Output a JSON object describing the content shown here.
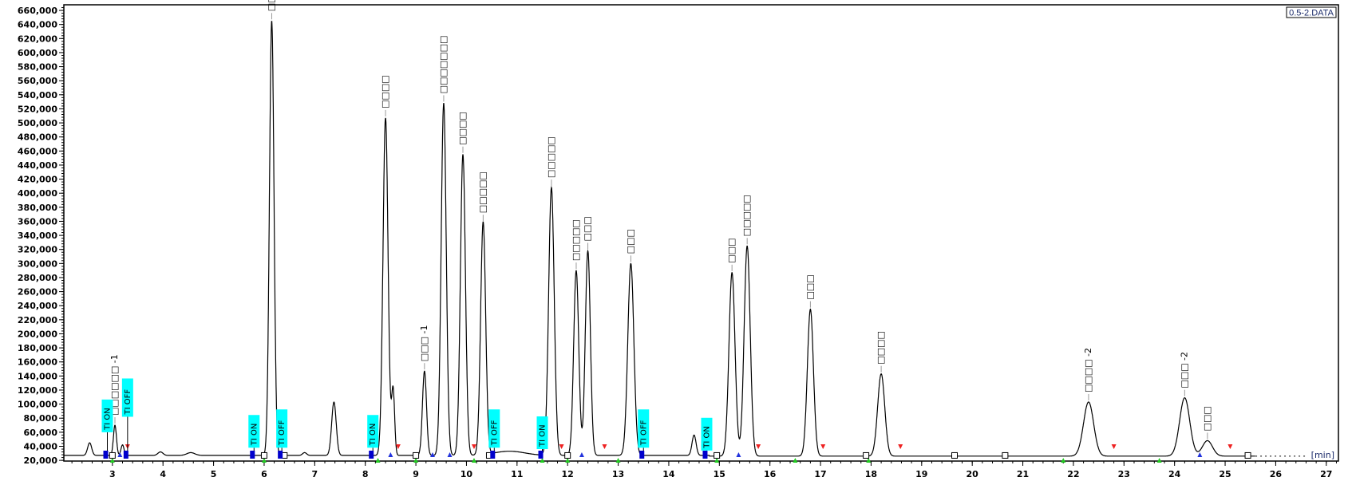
{
  "chart_data": {
    "type": "line",
    "title": "",
    "file_label": "0.5-2.DATA",
    "xlabel": "[min]",
    "ylabel": "",
    "xlim": [
      2.04,
      27.24
    ],
    "ylim": [
      19000,
      668000
    ],
    "x_ticks": [
      3,
      4,
      5,
      6,
      7,
      8,
      9,
      10,
      11,
      12,
      13,
      14,
      15,
      16,
      17,
      18,
      19,
      20,
      21,
      22,
      23,
      24,
      25,
      26,
      27
    ],
    "y_ticks": [
      20000,
      40000,
      60000,
      80000,
      100000,
      120000,
      140000,
      160000,
      180000,
      200000,
      220000,
      240000,
      260000,
      280000,
      300000,
      320000,
      340000,
      360000,
      380000,
      400000,
      420000,
      440000,
      460000,
      480000,
      500000,
      520000,
      540000,
      560000,
      580000,
      600000,
      620000,
      640000,
      660000
    ],
    "grid": false,
    "baseline": 27000,
    "peaks": [
      {
        "rt": 2.55,
        "apex": 45000,
        "width_min": 0.04,
        "label": ""
      },
      {
        "rt": 3.05,
        "apex": 70000,
        "width_min": 0.03,
        "label": "□□□□□□ -1"
      },
      {
        "rt": 3.2,
        "apex": 42000,
        "width_min": 0.03,
        "label": ""
      },
      {
        "rt": 3.95,
        "apex": 32000,
        "width_min": 0.05,
        "label": ""
      },
      {
        "rt": 4.55,
        "apex": 31000,
        "width_min": 0.08,
        "label": ""
      },
      {
        "rt": 6.15,
        "apex": 645000,
        "width_min": 0.045,
        "label": "□□□□□"
      },
      {
        "rt": 6.8,
        "apex": 31000,
        "width_min": 0.04,
        "label": ""
      },
      {
        "rt": 7.38,
        "apex": 103000,
        "width_min": 0.045,
        "label": ""
      },
      {
        "rt": 8.4,
        "apex": 507000,
        "width_min": 0.05,
        "label": "□□□□"
      },
      {
        "rt": 8.55,
        "apex": 120000,
        "width_min": 0.03,
        "label": ""
      },
      {
        "rt": 9.17,
        "apex": 147000,
        "width_min": 0.04,
        "label": "□□□ -1"
      },
      {
        "rt": 9.55,
        "apex": 528000,
        "width_min": 0.05,
        "label": "□□□□□□□"
      },
      {
        "rt": 9.93,
        "apex": 455000,
        "width_min": 0.05,
        "label": "□□□□"
      },
      {
        "rt": 10.33,
        "apex": 358000,
        "width_min": 0.05,
        "label": "□□□□□"
      },
      {
        "rt": 10.85,
        "apex": 33000,
        "width_min": 0.3,
        "label": ""
      },
      {
        "rt": 11.68,
        "apex": 408000,
        "width_min": 0.055,
        "label": "□□□□□"
      },
      {
        "rt": 12.17,
        "apex": 290000,
        "width_min": 0.05,
        "label": "□□□□□"
      },
      {
        "rt": 12.4,
        "apex": 318000,
        "width_min": 0.05,
        "label": "□□□"
      },
      {
        "rt": 13.25,
        "apex": 300000,
        "width_min": 0.06,
        "label": "□□□"
      },
      {
        "rt": 14.5,
        "apex": 56000,
        "width_min": 0.04,
        "label": ""
      },
      {
        "rt": 15.25,
        "apex": 287000,
        "width_min": 0.06,
        "label": "□□□"
      },
      {
        "rt": 15.55,
        "apex": 325000,
        "width_min": 0.06,
        "label": "□□□□□"
      },
      {
        "rt": 16.8,
        "apex": 235000,
        "width_min": 0.06,
        "label": "□□□"
      },
      {
        "rt": 18.2,
        "apex": 143000,
        "width_min": 0.07,
        "label": "□□□□"
      },
      {
        "rt": 22.3,
        "apex": 103000,
        "width_min": 0.1,
        "label": "□□□□ -2"
      },
      {
        "rt": 24.2,
        "apex": 109000,
        "width_min": 0.1,
        "label": "□□□ -2"
      },
      {
        "rt": 24.65,
        "apex": 48000,
        "width_min": 0.1,
        "label": "□□□"
      }
    ],
    "events": [
      {
        "t": 2.9,
        "label": "TI ON",
        "level": 60000
      },
      {
        "t": 3.3,
        "label": "TI OFF",
        "level": 82000
      },
      {
        "t": 5.8,
        "label": "TI ON",
        "level": 38000
      },
      {
        "t": 6.35,
        "label": "TI OFF",
        "level": 38000
      },
      {
        "t": 8.15,
        "label": "TI ON",
        "level": 38000
      },
      {
        "t": 10.55,
        "label": "TI OFF",
        "level": 38000
      },
      {
        "t": 11.5,
        "label": "TI ON",
        "level": 36000
      },
      {
        "t": 13.5,
        "label": "TI OFF",
        "level": 38000
      },
      {
        "t": 14.75,
        "label": "TI ON",
        "level": 34000
      }
    ],
    "markers": {
      "baseline_start": [
        3.0,
        6.0,
        8.25,
        9.0,
        10.15,
        11.5,
        12.0,
        13.0,
        14.95,
        16.5,
        17.95,
        21.8,
        23.7
      ],
      "peak_end": [
        3.3,
        8.65,
        10.15,
        11.88,
        12.73,
        15.77,
        17.05,
        18.58,
        22.8,
        25.1
      ],
      "split": [
        3.15,
        8.5,
        9.33,
        9.67,
        12.28,
        15.38,
        24.5
      ],
      "baseline_point": [
        3.0,
        6.0,
        6.4,
        9.0,
        10.45,
        12.0,
        14.95,
        17.9,
        19.65,
        20.65,
        25.45
      ]
    },
    "colors": {
      "trace": "#000000",
      "event_box": "#00ffff",
      "event_marker": "#0000cc",
      "baseline_start": "#22cc22",
      "peak_end": "#ee2222",
      "split": "#2233dd"
    }
  }
}
